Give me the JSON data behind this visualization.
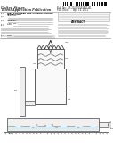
{
  "bg_color": "#ffffff",
  "barcode_color": "#111111",
  "line_color": "#555555",
  "text_color": "#222222",
  "light_gray": "#dddddd",
  "mid_gray": "#aaaaaa",
  "dark_gray": "#444444"
}
